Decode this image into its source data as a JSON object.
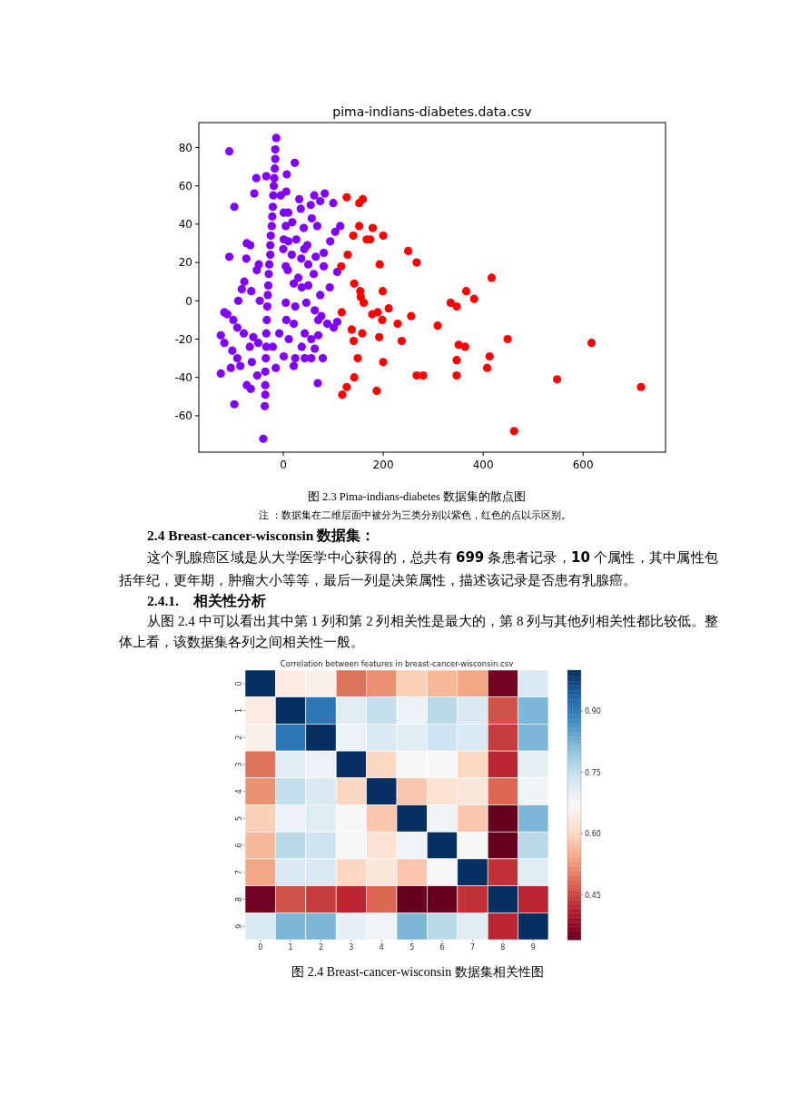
{
  "chart_data": [
    {
      "type": "scatter",
      "title": "pima-indians-diabetes.data.csv",
      "xlim": [
        -169,
        765
      ],
      "ylim": [
        -79,
        93
      ],
      "xticks": [
        0,
        200,
        400,
        600
      ],
      "yticks": [
        -60,
        -40,
        -20,
        0,
        20,
        40,
        60,
        80
      ],
      "annotations": [
        "图 2.3 Pima-indians-diabetes 数据集的散点图",
        "注 ：数据集在二维层面中被分为三类分别以紫色，红色的点以示区别。"
      ],
      "series": [
        {
          "color": "#7f00ff",
          "x": [
            -14,
            -16,
            -16,
            -17,
            -18,
            -19,
            -20,
            -21,
            -22,
            -23,
            -25,
            -26,
            -26,
            -28,
            -29,
            -30,
            -31,
            -32,
            -33,
            -34,
            -34,
            -35,
            -36,
            -36,
            -36,
            -37,
            -40,
            -108,
            -98,
            -108,
            -98,
            -54,
            -58,
            -34,
            23,
            7,
            6,
            -5,
            32,
            62,
            83,
            74,
            100,
            55,
            35,
            1,
            10,
            57,
            41,
            5,
            18,
            68,
            114,
            104,
            94,
            26,
            1,
            10,
            48,
            42,
            0,
            17,
            81,
            65,
            36,
            50,
            81,
            5,
            9,
            108,
            61,
            -73,
            -66,
            -74,
            -53,
            -49,
            30,
            21,
            37,
            50,
            93,
            -78,
            -83,
            -64,
            -90,
            -47,
            5,
            24,
            46,
            74,
            -118,
            -112,
            -100,
            63,
            76,
            88,
            101,
            108,
            70,
            43,
            21,
            6,
            -125,
            -118,
            -92,
            -79,
            -60,
            -50,
            -67,
            -102,
            -92,
            -86,
            -105,
            -125,
            -63,
            -73,
            -65,
            -52,
            -15,
            1,
            24,
            21,
            43,
            56,
            63,
            37,
            11,
            -21,
            -8,
            69,
            79,
            56,
            70
          ],
          "values": [
            85,
            79,
            74,
            69,
            64,
            60,
            55,
            49,
            44,
            39,
            34,
            29,
            24,
            19,
            14,
            8,
            3,
            -3,
            -10,
            -17,
            -24,
            -30,
            -37,
            -44,
            -49,
            -55,
            -72,
            78,
            49,
            23,
            -54,
            64,
            56,
            65,
            72,
            66,
            57,
            55,
            53,
            55,
            56,
            52,
            51,
            50,
            48,
            46,
            46,
            43,
            38,
            39,
            41,
            39,
            39,
            36,
            31,
            32,
            32,
            31,
            29,
            27,
            27,
            24,
            25,
            23,
            22,
            19,
            18,
            18,
            16,
            15,
            14,
            30,
            29,
            22,
            16,
            19,
            12,
            9,
            7,
            8,
            7,
            10,
            6,
            5,
            0,
            0,
            -1,
            -3,
            -1,
            3,
            -6,
            -7,
            -10,
            -5,
            -8,
            -12,
            -14,
            -11,
            -10,
            -17,
            -12,
            -10,
            -18,
            -22,
            -14,
            -17,
            -19,
            -22,
            -24,
            -26,
            -30,
            -34,
            -35,
            -38,
            -32,
            -44,
            -46,
            -39,
            -35,
            -29,
            -30,
            -34,
            -30,
            -30,
            -25,
            -24,
            -20,
            -24,
            -17,
            -43,
            -30,
            -20,
            -18
          ]
        },
        {
          "color": "#ff0000",
          "x": [
            127,
            152,
            159,
            152,
            179,
            140,
            167,
            174,
            200,
            129,
            116,
            193,
            250,
            267,
            417,
            142,
            154,
            155,
            161,
            199,
            366,
            382,
            335,
            347,
            117,
            178,
            189,
            198,
            211,
            256,
            229,
            309,
            137,
            158,
            192,
            141,
            237,
            351,
            364,
            449,
            617,
            149,
            200,
            347,
            413,
            408,
            267,
            280,
            347,
            548,
            716,
            142,
            127,
            118,
            187,
            462
          ],
          "values": [
            54,
            51,
            53,
            39,
            38,
            34,
            32,
            32,
            34,
            24,
            18,
            19,
            26,
            20,
            12,
            9,
            5,
            2,
            -1,
            5,
            5,
            1,
            -1,
            -3,
            -6,
            -7,
            -6,
            -10,
            -4,
            -8,
            -12,
            -13,
            -15,
            -17,
            -19,
            -21,
            -21,
            -23,
            -24,
            -20,
            -22,
            -30,
            -32,
            -31,
            -29,
            -35,
            -39,
            -39,
            -39,
            -41,
            -45,
            -40,
            -45,
            -49,
            -47,
            -68
          ]
        }
      ]
    },
    {
      "type": "heatmap",
      "title": "Correlation between features in breast-cancer-wisconsin.csv",
      "annotations": [
        "2.4 Breast-cancer-wisconsin 数据集：",
        "这个乳腺癌区域是从大学医学中心获得的，总共有 **699** 条患者记录，**10** 个属性，其中属性包括年纪，更年期，肿瘤大小等等，最后一列是决策属性，描述该记录是否患有乳腺癌。",
        "2.4.1.　相关性分析",
        "从图 2.4 中可以看出其中第 1 列和第 2 列相关性是最大的，第 8 列与其他列相关性都比较低。整体上看，该数据集各列之间相关性一般。",
        "图 2.4 Breast-cancer-wisconsin 数据集相关性图"
      ],
      "categories": [
        "0",
        "1",
        "2",
        "3",
        "4",
        "5",
        "6",
        "7",
        "8",
        "9"
      ],
      "y_categories": [
        "0",
        "1",
        "2",
        "3",
        "4",
        "5",
        "6",
        "7",
        "8",
        "9"
      ],
      "cells": [
        [
          1,
          0.64,
          0.65,
          0.49,
          0.52,
          0.59,
          0.56,
          0.54,
          0.35,
          0.72
        ],
        [
          0.64,
          1,
          0.91,
          0.71,
          0.75,
          0.69,
          0.76,
          0.72,
          0.46,
          0.82
        ],
        [
          0.65,
          0.91,
          1,
          0.69,
          0.72,
          0.71,
          0.74,
          0.72,
          0.44,
          0.82
        ],
        [
          0.49,
          0.71,
          0.69,
          1,
          0.6,
          0.67,
          0.67,
          0.6,
          0.42,
          0.7
        ],
        [
          0.52,
          0.75,
          0.72,
          0.6,
          1,
          0.58,
          0.62,
          0.63,
          0.48,
          0.68
        ],
        [
          0.59,
          0.69,
          0.71,
          0.67,
          0.58,
          1,
          0.68,
          0.58,
          0.34,
          0.82
        ],
        [
          0.56,
          0.76,
          0.74,
          0.67,
          0.62,
          0.68,
          1,
          0.67,
          0.34,
          0.76
        ],
        [
          0.54,
          0.72,
          0.72,
          0.6,
          0.63,
          0.58,
          0.67,
          1,
          0.43,
          0.71
        ],
        [
          0.35,
          0.46,
          0.44,
          0.42,
          0.48,
          0.34,
          0.34,
          0.43,
          1,
          0.42
        ],
        [
          0.72,
          0.82,
          0.82,
          0.7,
          0.68,
          0.82,
          0.76,
          0.71,
          0.42,
          1
        ]
      ],
      "clim": [
        0.34,
        1.0
      ],
      "cticks": [
        {
          "value": 0.45,
          "label": "0.45"
        },
        {
          "value": 0.6,
          "label": "0.60"
        },
        {
          "value": 0.75,
          "label": "0.75"
        },
        {
          "value": 0.9,
          "label": "0.90"
        }
      ]
    }
  ]
}
